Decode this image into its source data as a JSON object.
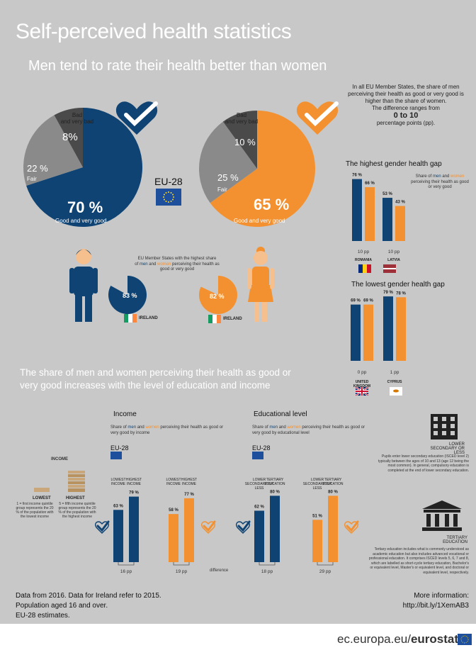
{
  "title": "Self-perceived health statistics",
  "subtitle": "Men tend to rate their health better than women",
  "intro": {
    "line1": "In all EU Member States, the share of men perceiving their health as good or very good is higher than the share of women.",
    "line2": "The difference ranges from",
    "range": "0 to 10",
    "line3": "percentage points (pp)."
  },
  "eu_label": "EU-28",
  "colors": {
    "men": "#0e4373",
    "women": "#f39130",
    "fair": "#8a8a8a",
    "bad": "#4a4a4a",
    "background": "#c8c8c8"
  },
  "pies": {
    "men": {
      "good_label": "70 %",
      "good_caption": "Good and very good",
      "fair_label": "22 %",
      "fair_caption": "Fair",
      "bad_label": "8%",
      "bad_caption": "Bad\nand very bad"
    },
    "women": {
      "good_label": "65 %",
      "good_caption": "Good and very good",
      "fair_label": "25 %",
      "fair_caption": "Fair",
      "bad_label": "10 %",
      "bad_caption": "Bad\nand very bad"
    }
  },
  "highest_share": {
    "caption_a": "EU Member States with the highest share",
    "caption_of": "of",
    "caption_men": "men",
    "caption_and": "and",
    "caption_women": "women",
    "caption_b": "perceiving their health as good or very good",
    "men_value": "83 %",
    "women_value": "82 %",
    "country": "IRELAND"
  },
  "gap_legend": {
    "prefix": "Share of",
    "men": "men",
    "and": "and",
    "women": "women",
    "suffix": "perceiving their health as good or very good"
  },
  "highest_gap": {
    "title": "The highest gender health gap"
  },
  "lowest_gap": {
    "title": "The lowest gender health gap"
  },
  "section2_title": "The share of men and women perceiving their health as good or very good increases with the level of education and income",
  "income": {
    "title": "Income",
    "legend_a": "Share of",
    "legend_men": "men",
    "legend_and": "and",
    "legend_women": "women",
    "legend_b": "perceiving their health as good or very good by income",
    "eu": "EU-28",
    "side_title": "INCOME",
    "lowest_title": "LOWEST",
    "lowest_desc": "1 = first income quintile group represents the 20 % of the population with the lowest income",
    "highest_title": "HIGHEST",
    "highest_desc": "5 = fifth income quintile group represents the 20 % of the population with the highest income",
    "lowest_col": "LOWEST INCOME",
    "highest_col": "HIGHEST INCOME"
  },
  "education": {
    "title": "Educational level",
    "legend_b": "perceiving their health as good or very good by educational level",
    "lower_col": "LOWER SECONDARY OR LESS",
    "tertiary_col": "TERTIARY EDUCATION",
    "lower_icon_title": "LOWER SECONDARY OR LESS",
    "lower_desc": "Pupils enter lower secondary education (ISCED level 2) typically between the ages of 10 and 13 (age 12 being the most common). In general, compulsory education is completed at the end of lower secondary education.",
    "tertiary_icon_title": "TERTIARY EDUCATION",
    "tertiary_desc": "Tertiary education includes what is commonly understood as academic education but also includes advanced vocational or professional education. It comprises ISCED levels 5, 6, 7 and 8, which are labelled as short-cycle tertiary education, Bachelor's or equivalent level, Master's or equivalent level, and doctoral or equivalent level, respectively."
  },
  "difference_label": "difference",
  "footer": {
    "note1": "Data from 2016. Data for Ireland refer to 2015.",
    "note2": "Population aged 16 and over.",
    "note3": "EU-28 estimates.",
    "more": "More information:",
    "link": "http://bit.ly/1XemAB3",
    "brand_a": "ec.europa.eu/",
    "brand_b": "eurostat"
  },
  "chart_data": [
    {
      "type": "pie",
      "name": "Men, EU-28",
      "categories": [
        "Good and very good",
        "Fair",
        "Bad and very bad"
      ],
      "values": [
        70,
        22,
        8
      ]
    },
    {
      "type": "pie",
      "name": "Women, EU-28",
      "categories": [
        "Good and very good",
        "Fair",
        "Bad and very bad"
      ],
      "values": [
        65,
        25,
        10
      ]
    },
    {
      "type": "pie",
      "name": "Ireland",
      "categories": [
        "Men",
        "Women"
      ],
      "values": [
        83,
        82
      ]
    },
    {
      "type": "bar",
      "title": "The highest gender health gap",
      "categories": [
        "ROMANIA",
        "LATVIA"
      ],
      "series": [
        {
          "name": "men",
          "values": [
            76,
            53
          ]
        },
        {
          "name": "women",
          "values": [
            66,
            43
          ]
        }
      ],
      "value_labels": [
        "76 %",
        "66 %",
        "53 %",
        "43 %"
      ],
      "gap_labels": [
        "10 pp",
        "10 pp"
      ],
      "ylim": [
        0,
        100
      ]
    },
    {
      "type": "bar",
      "title": "The lowest gender health gap",
      "categories": [
        "UNITED KINGDOM",
        "CYPRUS"
      ],
      "series": [
        {
          "name": "men",
          "values": [
            69,
            79
          ]
        },
        {
          "name": "women",
          "values": [
            69,
            78
          ]
        }
      ],
      "value_labels": [
        "69 %",
        "69 %",
        "79 %",
        "78 %"
      ],
      "gap_labels": [
        "0 pp",
        "1 pp"
      ],
      "ylim": [
        0,
        100
      ]
    },
    {
      "type": "bar",
      "title": "Income",
      "categories": [
        "LOWEST INCOME",
        "HIGHEST INCOME"
      ],
      "series": [
        {
          "name": "men",
          "values": [
            63,
            79
          ]
        },
        {
          "name": "women",
          "values": [
            58,
            77
          ]
        }
      ],
      "value_labels": [
        "63 %",
        "79 %",
        "58 %",
        "77 %"
      ],
      "gap_labels": [
        "16 pp",
        "19 pp"
      ],
      "ylim": [
        0,
        100
      ]
    },
    {
      "type": "bar",
      "title": "Educational level",
      "categories": [
        "LOWER SECONDARY OR LESS",
        "TERTIARY EDUCATION"
      ],
      "series": [
        {
          "name": "men",
          "values": [
            62,
            80
          ]
        },
        {
          "name": "women",
          "values": [
            51,
            80
          ]
        }
      ],
      "value_labels": [
        "62 %",
        "80 %",
        "51 %",
        "80 %"
      ],
      "gap_labels": [
        "18 pp",
        "29 pp"
      ],
      "ylim": [
        0,
        100
      ]
    }
  ]
}
